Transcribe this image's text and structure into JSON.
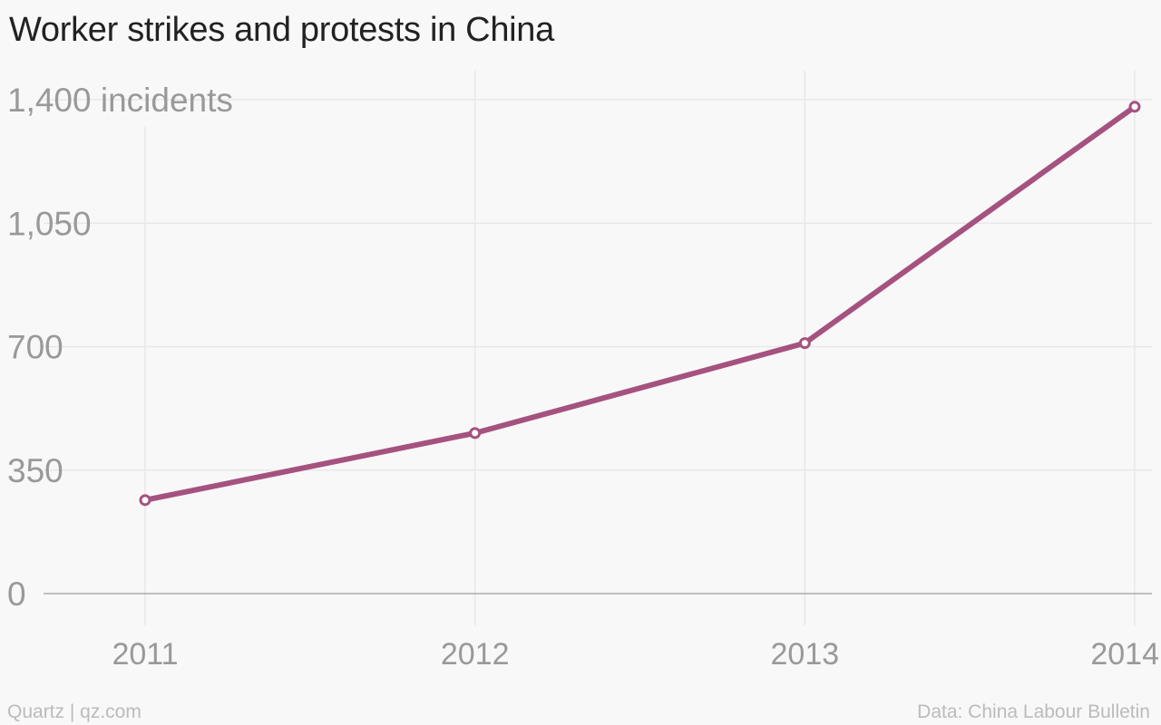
{
  "chart_data": {
    "type": "line",
    "title": "Worker strikes and protests in China",
    "x": [
      "2011",
      "2012",
      "2013",
      "2014"
    ],
    "series": [
      {
        "values": [
          265,
          455,
          710,
          1380
        ],
        "color": "#a5527f"
      }
    ],
    "ylim": [
      0,
      1400
    ],
    "yticks": [
      "0",
      "350",
      "700",
      "1,050",
      "1,400 incidents"
    ],
    "ytick_values": [
      0,
      350,
      700,
      1050,
      1400
    ],
    "grid": true,
    "legend": "none"
  },
  "footer": {
    "source_left": "Quartz | qz.com",
    "source_right": "Data: China Labour Bulletin"
  },
  "colors": {
    "line": "#a5527f",
    "grid": "#e8e8e8",
    "baseline": "#aaaaaa",
    "background": "#f8f8f8"
  }
}
